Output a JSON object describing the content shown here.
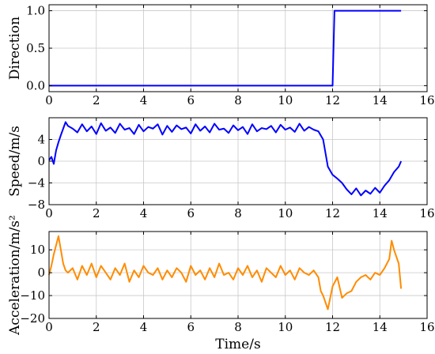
{
  "chart_data": [
    {
      "type": "line",
      "xlabel": "",
      "ylabel": "Direction",
      "xlim": [
        0,
        16
      ],
      "ylim": [
        -0.08,
        1.08
      ],
      "xticks": [
        0,
        2,
        4,
        6,
        8,
        10,
        12,
        14,
        16
      ],
      "xtick_labels": [
        "0",
        "2",
        "4",
        "6",
        "8",
        "10",
        "12",
        "14",
        "16"
      ],
      "yticks": [
        0.0,
        0.5,
        1.0
      ],
      "ytick_labels": [
        "0.0",
        "0.5",
        "1.0"
      ],
      "grid": true,
      "series": [
        {
          "color": "#0000ff",
          "x": [
            0,
            12.0,
            12.08,
            14.9
          ],
          "y": [
            0,
            0,
            1,
            1
          ]
        }
      ]
    },
    {
      "type": "line",
      "xlabel": "",
      "ylabel": "Speed/m/s",
      "xlim": [
        0,
        16
      ],
      "ylim": [
        -8,
        8
      ],
      "xticks": [
        0,
        2,
        4,
        6,
        8,
        10,
        12,
        14,
        16
      ],
      "xtick_labels": [
        "0",
        "2",
        "4",
        "6",
        "8",
        "10",
        "12",
        "14",
        "16"
      ],
      "yticks": [
        -8,
        -4,
        0,
        4
      ],
      "ytick_labels": [
        "−8",
        "−4",
        "0",
        "4"
      ],
      "grid": true,
      "series": [
        {
          "color": "#0000ff",
          "x": [
            0,
            0.1,
            0.2,
            0.3,
            0.4,
            0.5,
            0.6,
            0.7,
            0.8,
            1.0,
            1.2,
            1.4,
            1.6,
            1.8,
            2.0,
            2.2,
            2.4,
            2.6,
            2.8,
            3.0,
            3.2,
            3.4,
            3.6,
            3.8,
            4.0,
            4.2,
            4.4,
            4.6,
            4.8,
            5.0,
            5.2,
            5.4,
            5.6,
            5.8,
            6.0,
            6.2,
            6.4,
            6.6,
            6.8,
            7.0,
            7.2,
            7.4,
            7.6,
            7.8,
            8.0,
            8.2,
            8.4,
            8.6,
            8.8,
            9.0,
            9.2,
            9.4,
            9.6,
            9.8,
            10.0,
            10.2,
            10.4,
            10.6,
            10.8,
            11.0,
            11.2,
            11.4,
            11.6,
            11.8,
            12.0,
            12.2,
            12.4,
            12.6,
            12.8,
            13.0,
            13.2,
            13.4,
            13.6,
            13.8,
            14.0,
            14.2,
            14.4,
            14.6,
            14.8,
            14.9
          ],
          "y": [
            0.2,
            0.8,
            -0.5,
            2.0,
            3.5,
            4.8,
            6.0,
            7.2,
            6.5,
            6.0,
            5.3,
            6.8,
            5.5,
            6.4,
            5.0,
            7.0,
            5.6,
            6.2,
            5.2,
            6.9,
            5.8,
            6.1,
            5.0,
            6.7,
            5.5,
            6.3,
            6.0,
            6.8,
            4.9,
            6.5,
            5.4,
            6.6,
            5.9,
            6.2,
            5.1,
            6.8,
            5.6,
            6.4,
            5.3,
            6.9,
            5.8,
            6.0,
            5.2,
            6.6,
            5.7,
            6.3,
            5.0,
            6.8,
            5.5,
            6.1,
            5.9,
            6.5,
            5.3,
            6.7,
            5.8,
            6.2,
            5.4,
            6.9,
            5.6,
            6.3,
            5.8,
            5.5,
            4.0,
            -1.0,
            -2.5,
            -3.2,
            -4.0,
            -5.2,
            -6.1,
            -5.0,
            -6.3,
            -5.4,
            -6.0,
            -4.9,
            -5.8,
            -4.5,
            -3.5,
            -2.0,
            -1.0,
            0.0
          ]
        }
      ]
    },
    {
      "type": "line",
      "xlabel": "Time/s",
      "ylabel": "Acceleration/m/s²",
      "xlim": [
        0,
        16
      ],
      "ylim": [
        -20,
        18
      ],
      "xticks": [
        0,
        2,
        4,
        6,
        8,
        10,
        12,
        14,
        16
      ],
      "xtick_labels": [
        "0",
        "2",
        "4",
        "6",
        "8",
        "10",
        "12",
        "14",
        "16"
      ],
      "yticks": [
        -20,
        -10,
        0,
        10
      ],
      "ytick_labels": [
        "−20",
        "−10",
        "0",
        "10"
      ],
      "grid": true,
      "series": [
        {
          "color": "#ff8c00",
          "x": [
            0,
            0.1,
            0.2,
            0.3,
            0.4,
            0.5,
            0.6,
            0.7,
            0.8,
            1.0,
            1.2,
            1.4,
            1.6,
            1.8,
            2.0,
            2.2,
            2.4,
            2.6,
            2.8,
            3.0,
            3.2,
            3.4,
            3.6,
            3.8,
            4.0,
            4.2,
            4.4,
            4.6,
            4.8,
            5.0,
            5.2,
            5.4,
            5.6,
            5.8,
            6.0,
            6.2,
            6.4,
            6.6,
            6.8,
            7.0,
            7.2,
            7.4,
            7.6,
            7.8,
            8.0,
            8.2,
            8.4,
            8.6,
            8.8,
            9.0,
            9.2,
            9.4,
            9.6,
            9.8,
            10.0,
            10.2,
            10.4,
            10.6,
            10.8,
            11.0,
            11.2,
            11.4,
            11.5,
            11.6,
            11.8,
            12.0,
            12.2,
            12.4,
            12.6,
            12.8,
            13.0,
            13.2,
            13.4,
            13.6,
            13.8,
            14.0,
            14.2,
            14.4,
            14.5,
            14.6,
            14.8,
            14.9
          ],
          "y": [
            -1,
            3,
            8,
            12,
            16,
            10,
            4,
            1,
            0,
            2,
            -3,
            3,
            -1,
            4,
            -2,
            3,
            0,
            -3,
            2,
            -1,
            4,
            -4,
            1,
            -2,
            3,
            0,
            -1,
            2,
            -3,
            1,
            -2,
            2,
            0,
            -4,
            3,
            -1,
            1,
            -3,
            2,
            -2,
            4,
            -1,
            0,
            -3,
            2,
            -1,
            3,
            -2,
            1,
            -4,
            2,
            0,
            -2,
            3,
            -1,
            1,
            -3,
            2,
            0,
            -1,
            1,
            -2,
            -8,
            -10,
            -16,
            -6,
            -2,
            -11,
            -9,
            -8,
            -4,
            -2,
            -1,
            -3,
            0,
            -1,
            2,
            6,
            14,
            10,
            4,
            -7
          ]
        }
      ]
    }
  ]
}
